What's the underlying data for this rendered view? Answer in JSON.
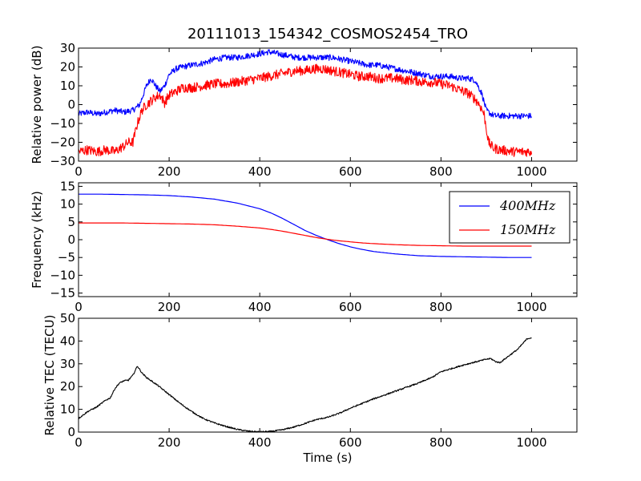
{
  "title": "20111013_154342_COSMOS2454_TRO",
  "chart_data": [
    {
      "type": "line",
      "id": "power",
      "ylabel": "Relative power (dB)",
      "xlim": [
        0,
        1100
      ],
      "ylim": [
        -30,
        30
      ],
      "xticks": [
        0,
        200,
        400,
        600,
        800,
        1000
      ],
      "yticks": [
        -30,
        -20,
        -10,
        0,
        10,
        20,
        30
      ],
      "grid": false,
      "series": [
        {
          "color": "#0000ff",
          "noise": 1.6,
          "x": [
            0,
            20,
            40,
            60,
            80,
            100,
            120,
            135,
            150,
            160,
            170,
            180,
            190,
            200,
            215,
            230,
            250,
            275,
            300,
            325,
            350,
            375,
            400,
            420,
            440,
            460,
            480,
            500,
            520,
            540,
            560,
            580,
            600,
            620,
            640,
            660,
            680,
            700,
            720,
            740,
            760,
            780,
            800,
            820,
            840,
            860,
            875,
            890,
            900,
            910,
            920,
            940,
            960,
            980,
            1000
          ],
          "y": [
            -5,
            -4,
            -5,
            -4,
            -3,
            -4,
            -3,
            0,
            10,
            14,
            10,
            7,
            10,
            16,
            19,
            20,
            21,
            22,
            24,
            25,
            25,
            26,
            27,
            28,
            27,
            26,
            25,
            25,
            25,
            25,
            25,
            24,
            23,
            22,
            21,
            21,
            20,
            19,
            18,
            17,
            16,
            15,
            15,
            15,
            14,
            14,
            13,
            6,
            -3,
            -5,
            -6,
            -6,
            -6,
            -6,
            -6
          ]
        },
        {
          "color": "#ff0000",
          "noise": 2.6,
          "x": [
            0,
            20,
            40,
            60,
            80,
            100,
            110,
            120,
            130,
            140,
            150,
            160,
            170,
            180,
            190,
            200,
            215,
            230,
            250,
            275,
            300,
            325,
            350,
            375,
            400,
            420,
            440,
            460,
            480,
            500,
            520,
            540,
            560,
            580,
            600,
            620,
            640,
            660,
            680,
            700,
            720,
            740,
            760,
            780,
            800,
            820,
            840,
            860,
            875,
            885,
            895,
            905,
            915,
            930,
            960,
            980,
            1000
          ],
          "y": [
            -25,
            -24,
            -25,
            -24,
            -25,
            -22,
            -20,
            -20,
            -10,
            -3,
            0,
            2,
            4,
            5,
            1,
            5,
            7,
            9,
            9,
            10,
            11,
            11,
            12,
            13,
            14,
            15,
            16,
            17,
            18,
            18,
            19,
            19,
            18,
            17,
            16,
            15,
            15,
            14,
            14,
            14,
            13,
            13,
            12,
            12,
            11,
            10,
            8,
            6,
            3,
            0,
            -5,
            -20,
            -23,
            -24,
            -25,
            -25,
            -25
          ]
        }
      ]
    },
    {
      "type": "line",
      "id": "frequency",
      "ylabel": "Frequency (kHz)",
      "xlim": [
        0,
        1100
      ],
      "ylim": [
        -16,
        16
      ],
      "xticks": [
        0,
        200,
        400,
        600,
        800,
        1000
      ],
      "yticks": [
        -15,
        -10,
        -5,
        0,
        5,
        10,
        15
      ],
      "grid": false,
      "legend": "top-right",
      "series": [
        {
          "name": "400MHz",
          "color": "#0000ff",
          "noise": 0.0,
          "x": [
            0,
            50,
            100,
            150,
            200,
            250,
            300,
            350,
            400,
            425,
            450,
            475,
            500,
            525,
            550,
            575,
            600,
            625,
            650,
            700,
            750,
            800,
            850,
            900,
            950,
            1000
          ],
          "y": [
            12.8,
            12.8,
            12.7,
            12.6,
            12.4,
            12.0,
            11.4,
            10.3,
            8.7,
            7.5,
            6.0,
            4.3,
            2.6,
            1.2,
            0.0,
            -1.1,
            -2.0,
            -2.7,
            -3.3,
            -4.0,
            -4.5,
            -4.7,
            -4.8,
            -4.9,
            -5.0,
            -5.0
          ]
        },
        {
          "name": "150MHz",
          "color": "#ff0000",
          "noise": 0.0,
          "x": [
            0,
            50,
            100,
            150,
            200,
            250,
            300,
            350,
            400,
            425,
            450,
            475,
            500,
            525,
            550,
            575,
            600,
            625,
            650,
            700,
            750,
            800,
            850,
            900,
            950,
            1000
          ],
          "y": [
            4.7,
            4.7,
            4.7,
            4.6,
            4.5,
            4.4,
            4.2,
            3.8,
            3.3,
            2.9,
            2.4,
            1.8,
            1.2,
            0.6,
            0.1,
            -0.3,
            -0.6,
            -0.9,
            -1.1,
            -1.4,
            -1.6,
            -1.7,
            -1.8,
            -1.8,
            -1.8,
            -1.8
          ]
        }
      ]
    },
    {
      "type": "line",
      "id": "tec",
      "xlabel": "Time (s)",
      "ylabel": "Relative TEC (TECU)",
      "xlim": [
        0,
        1100
      ],
      "ylim": [
        0,
        50
      ],
      "xticks": [
        0,
        200,
        400,
        600,
        800,
        1000
      ],
      "yticks": [
        0,
        10,
        20,
        30,
        40,
        50
      ],
      "grid": false,
      "series": [
        {
          "color": "#000000",
          "noise": 0.3,
          "x": [
            0,
            20,
            40,
            60,
            70,
            80,
            90,
            100,
            110,
            120,
            130,
            140,
            150,
            175,
            200,
            225,
            250,
            275,
            300,
            325,
            350,
            375,
            400,
            425,
            450,
            475,
            500,
            525,
            550,
            575,
            600,
            650,
            700,
            750,
            780,
            800,
            850,
            900,
            910,
            920,
            930,
            950,
            970,
            990,
            1000
          ],
          "y": [
            6,
            9,
            11,
            14,
            15,
            19,
            21.5,
            22.5,
            22.8,
            25,
            29,
            26,
            24,
            20.5,
            16.5,
            12.5,
            9,
            6,
            4,
            2.5,
            1.2,
            0.4,
            0.1,
            0.3,
            1,
            2.2,
            3.8,
            5.5,
            6.5,
            8.2,
            10.5,
            14.5,
            18,
            21.5,
            24,
            26.5,
            29.5,
            32,
            32.3,
            31,
            30.5,
            33.5,
            36.5,
            41,
            41.5
          ]
        }
      ]
    }
  ]
}
